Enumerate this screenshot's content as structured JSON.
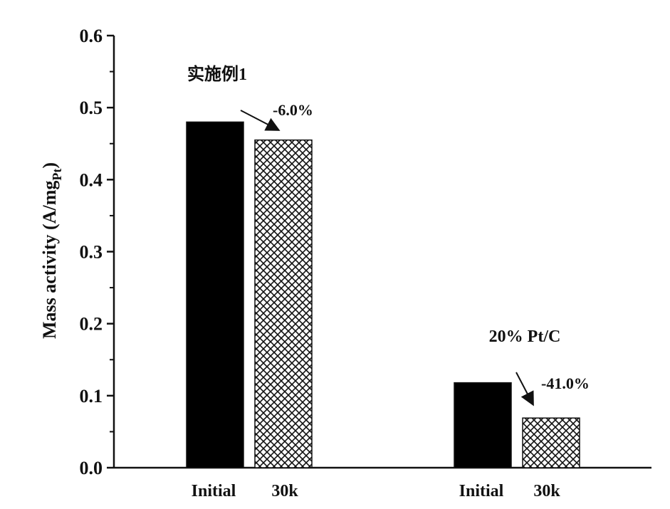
{
  "chart_data": {
    "type": "bar",
    "ylabel": "Mass activity (A/mg",
    "ylabel_sub": "Pt",
    "ylabel_close": ")",
    "ylim": [
      0.0,
      0.6
    ],
    "yticks": [
      "0.0",
      "0.1",
      "0.2",
      "0.3",
      "0.4",
      "0.5",
      "0.6"
    ],
    "grid": false,
    "legend": "none",
    "groups": [
      {
        "name": "实施例1",
        "bars": [
          {
            "category": "Initial",
            "value": 0.48,
            "pattern": "solid",
            "color": "#000000"
          },
          {
            "category": "30k",
            "value": 0.455,
            "pattern": "crosshatch",
            "color": "#000000"
          }
        ],
        "change_label": "-6.0%"
      },
      {
        "name": "20% Pt/C",
        "bars": [
          {
            "category": "Initial",
            "value": 0.118,
            "pattern": "solid",
            "color": "#000000"
          },
          {
            "category": "30k",
            "value": 0.069,
            "pattern": "crosshatch",
            "color": "#000000"
          }
        ],
        "change_label": "-41.0%"
      }
    ]
  }
}
